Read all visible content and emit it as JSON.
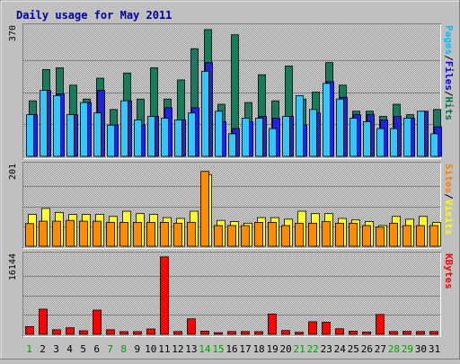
{
  "chart_data": {
    "type": "bar",
    "title": "Daily usage for May 2011",
    "categories": [
      "1",
      "2",
      "3",
      "4",
      "5",
      "6",
      "7",
      "8",
      "9",
      "10",
      "11",
      "12",
      "13",
      "14",
      "15",
      "16",
      "17",
      "18",
      "19",
      "20",
      "21",
      "22",
      "23",
      "24",
      "25",
      "26",
      "27",
      "28",
      "29",
      "30",
      "31"
    ],
    "weekend_days": [
      "1",
      "7",
      "8",
      "14",
      "15",
      "21",
      "22",
      "28",
      "29"
    ],
    "panels": [
      {
        "key": "hits",
        "ymax_label": "370",
        "ylim": [
          0,
          370
        ],
        "legend": [
          {
            "text": "Pages",
            "color": "#00c0ff"
          },
          {
            "text": "/",
            "color": "#000000"
          },
          {
            "text": "Files",
            "color": "#0000ff"
          },
          {
            "text": "/",
            "color": "#000000"
          },
          {
            "text": "Hits",
            "color": "#007050"
          }
        ],
        "series": [
          {
            "name": "Hits",
            "color": "#1a7a5e",
            "values": [
              160,
              250,
              255,
              205,
              165,
              225,
              135,
              240,
              165,
              255,
              165,
              220,
              310,
              365,
              150,
              350,
              155,
              235,
              160,
              260,
              165,
              185,
              270,
              205,
              130,
              130,
              115,
              150,
              120,
              125,
              135
            ]
          },
          {
            "name": "Files",
            "color": "#2222dd",
            "values": [
              120,
              190,
              180,
              120,
              155,
              190,
              90,
              160,
              90,
              115,
              140,
              105,
              140,
              270,
              100,
              80,
              100,
              115,
              110,
              115,
              90,
              125,
              215,
              170,
              120,
              120,
              105,
              115,
              110,
              130,
              85
            ]
          },
          {
            "name": "Pages",
            "color": "#33c6ff",
            "values": [
              120,
              190,
              175,
              120,
              155,
              125,
              90,
              160,
              105,
              115,
              110,
              105,
              125,
              245,
              130,
              65,
              110,
              110,
              80,
              115,
              175,
              135,
              210,
              165,
              110,
              100,
              80,
              80,
              110,
              130,
              65
            ]
          }
        ]
      },
      {
        "key": "visits",
        "ymax_label": "201",
        "ylim": [
          0,
          201
        ],
        "legend": [
          {
            "text": "Sites",
            "color": "#ff8000"
          },
          {
            "text": "/",
            "color": "#000000"
          },
          {
            "text": "Visits",
            "color": "#ffff00"
          }
        ],
        "series": [
          {
            "name": "Visits",
            "color": "#ffff30",
            "values": [
              80,
              95,
              85,
              80,
              80,
              80,
              75,
              88,
              82,
              80,
              72,
              70,
              88,
              180,
              65,
              62,
              58,
              72,
              72,
              68,
              88,
              82,
              82,
              70,
              66,
              62,
              52,
              75,
              68,
              75,
              60
            ]
          },
          {
            "name": "Sites",
            "color": "#ff8c00",
            "values": [
              57,
              63,
              63,
              65,
              63,
              63,
              60,
              60,
              60,
              60,
              60,
              58,
              60,
              188,
              52,
              52,
              52,
              60,
              60,
              52,
              58,
              58,
              62,
              58,
              58,
              52,
              48,
              58,
              52,
              52,
              52
            ]
          }
        ]
      },
      {
        "key": "kbytes",
        "ymax_label": "16144",
        "ylim": [
          0,
          16144
        ],
        "legend": [
          {
            "text": "KBytes",
            "color": "#ff0000"
          }
        ],
        "series": [
          {
            "name": "KBytes",
            "color": "#ff0000",
            "values": [
              1600,
              5200,
              950,
              1350,
              740,
              5000,
              950,
              560,
              560,
              1100,
              16000,
              580,
              3200,
              650,
              340,
              580,
              580,
              550,
              4200,
              790,
              420,
              2600,
              2500,
              1150,
              650,
              490,
              4100,
              580,
              610,
              580,
              580
            ]
          }
        ]
      }
    ]
  }
}
